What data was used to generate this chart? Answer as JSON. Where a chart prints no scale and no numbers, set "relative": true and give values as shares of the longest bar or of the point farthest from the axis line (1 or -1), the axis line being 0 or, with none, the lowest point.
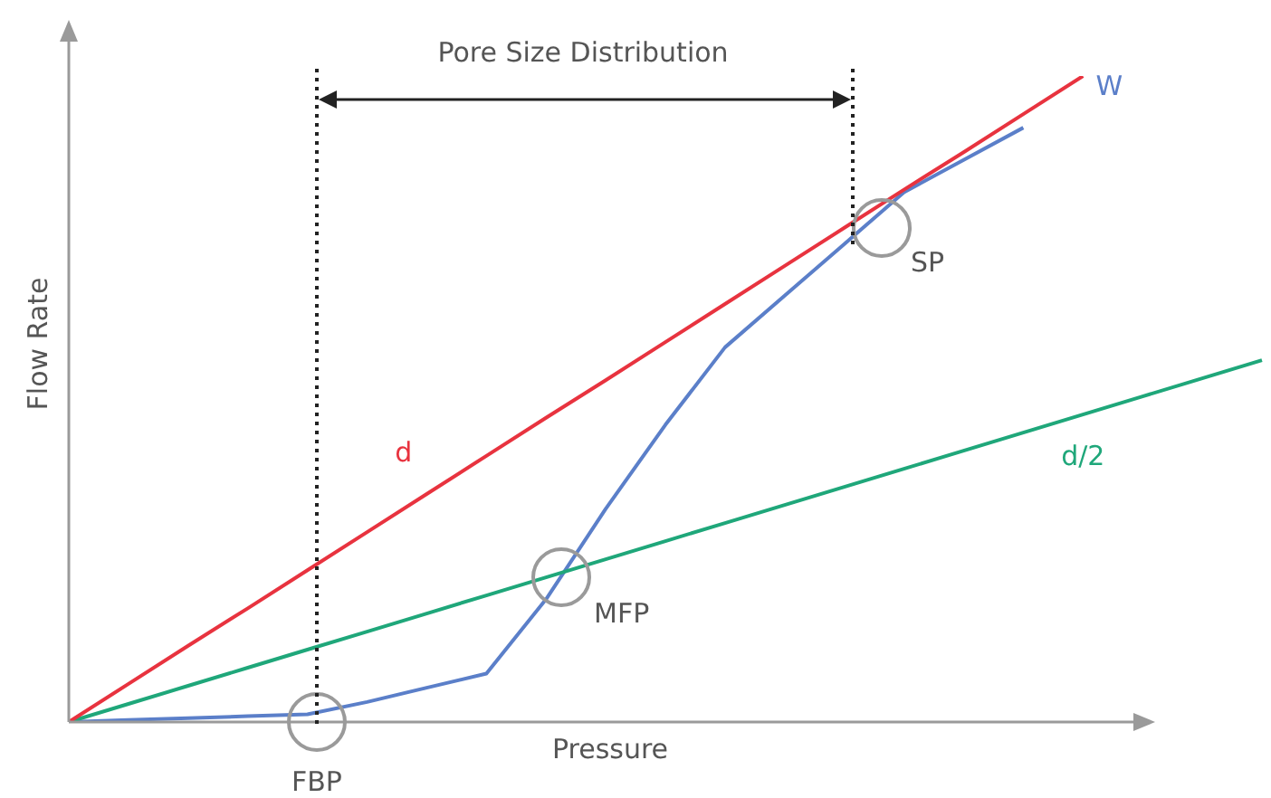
{
  "chart_data": {
    "type": "line",
    "relative": true,
    "xlabel": "Pressure",
    "ylabel": "Flow Rate",
    "legend": false,
    "marker": "none",
    "grid": false,
    "categories": [
      null,
      null,
      null,
      null,
      null,
      null,
      null,
      null,
      null,
      null,
      null,
      null,
      null,
      null,
      null,
      null,
      null,
      null,
      null,
      null,
      null
    ],
    "series": [
      {
        "name": "d",
        "color": "#e8333f",
        "values": [
          0,
          0.059,
          0.118,
          0.176,
          0.235,
          0.294,
          0.353,
          0.412,
          0.471,
          0.529,
          0.588,
          0.647,
          0.706,
          0.765,
          0.824,
          0.882,
          0.941,
          1,
          null,
          null,
          null
        ]
      },
      {
        "name": "d/2",
        "color": "#1fa77a",
        "values": [
          0,
          0.028,
          0.056,
          0.084,
          0.112,
          0.14,
          0.168,
          0.196,
          0.224,
          0.252,
          0.28,
          0.308,
          0.336,
          0.364,
          0.392,
          0.42,
          0.448,
          0.476,
          0.504,
          0.532,
          0.56
        ]
      },
      {
        "name": "W",
        "color": "#5b7fc9",
        "values": [
          0,
          0.003,
          0.006,
          0.009,
          0.012,
          0.031,
          0.053,
          0.075,
          0.19,
          0.33,
          0.46,
          0.58,
          0.66,
          0.74,
          0.82,
          0.87,
          0.92,
          null,
          null,
          null,
          null
        ]
      }
    ],
    "annotations": [
      "Pore Size Distribution",
      "FBP",
      "MFP",
      "SP"
    ]
  }
}
